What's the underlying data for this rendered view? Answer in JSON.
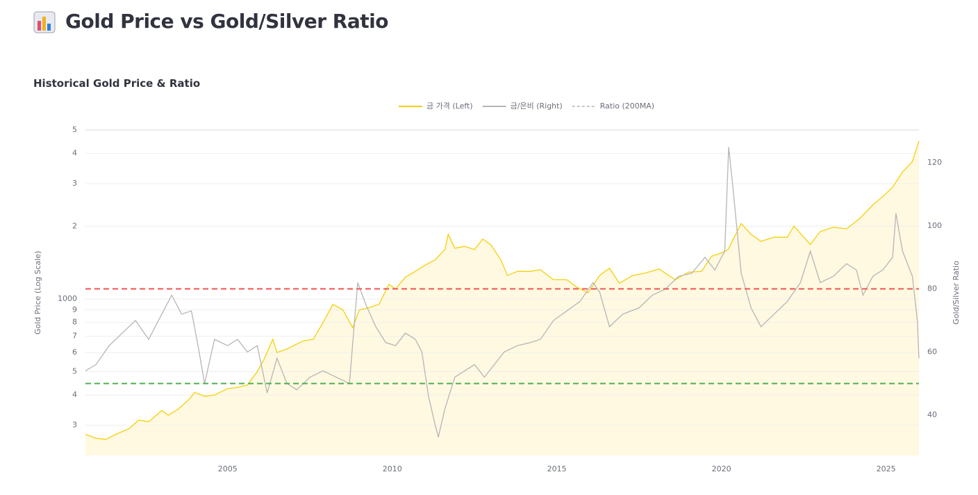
{
  "page": {
    "title": "Gold Price vs Gold/Silver Ratio"
  },
  "chart_data": {
    "type": "line",
    "title": "Historical Gold Price & Ratio",
    "y_label": "Gold Price (Log Scale)",
    "y2_label": "Gold/Silver Ratio",
    "log_y": true,
    "grid": true,
    "legend": "top",
    "xlim": [
      2000.68,
      2026.0
    ],
    "xticks": [
      2005,
      2010,
      2015,
      2020,
      2025
    ],
    "ylim": [
      225,
      5000
    ],
    "yticks": [
      {
        "value": 300,
        "label": "3"
      },
      {
        "value": 400,
        "label": "4"
      },
      {
        "value": 500,
        "label": "5"
      },
      {
        "value": 600,
        "label": "6"
      },
      {
        "value": 700,
        "label": "7"
      },
      {
        "value": 800,
        "label": "8"
      },
      {
        "value": 900,
        "label": "9"
      },
      1000,
      {
        "value": 2000,
        "label": "2"
      },
      {
        "value": 3000,
        "label": "3"
      },
      {
        "value": 4000,
        "label": "4"
      },
      {
        "value": 5000,
        "label": "5"
      }
    ],
    "y2lim": [
      27.2,
      130.4
    ],
    "y2ticks": [
      40,
      60,
      80,
      100,
      120
    ],
    "series": [
      {
        "name": "금 가격 (Left)",
        "color": "#f5cf0a",
        "fill": "#fff8dc",
        "x": [
          2000.68,
          2001,
          2001.3,
          2001.6,
          2002,
          2002.3,
          2002.6,
          2003,
          2003.2,
          2003.5,
          2003.8,
          2004,
          2004.3,
          2004.6,
          2005,
          2005.3,
          2005.6,
          2005.9,
          2006.1,
          2006.37,
          2006.5,
          2006.8,
          2007,
          2007.3,
          2007.6,
          2007.9,
          2008.2,
          2008.5,
          2008.8,
          2009,
          2009.3,
          2009.6,
          2009.9,
          2010.1,
          2010.4,
          2010.7,
          2011,
          2011.3,
          2011.6,
          2011.7,
          2011.9,
          2012.2,
          2012.5,
          2012.75,
          2013,
          2013.3,
          2013.5,
          2013.8,
          2014.2,
          2014.5,
          2014.9,
          2015.3,
          2015.6,
          2015.95,
          2016.3,
          2016.6,
          2016.9,
          2017.3,
          2017.7,
          2018.1,
          2018.6,
          2019,
          2019.4,
          2019.7,
          2020,
          2020.2,
          2020.6,
          2020.9,
          2021.2,
          2021.6,
          2022,
          2022.2,
          2022.7,
          2023,
          2023.4,
          2023.8,
          2024.2,
          2024.6,
          2024.9,
          2025.2,
          2025.5,
          2025.8,
          2026
        ],
        "values": [
          275,
          265,
          262,
          275,
          290,
          315,
          310,
          345,
          330,
          350,
          380,
          410,
          395,
          400,
          425,
          430,
          440,
          500,
          560,
          680,
          600,
          620,
          640,
          670,
          680,
          800,
          950,
          900,
          760,
          900,
          920,
          950,
          1150,
          1100,
          1230,
          1300,
          1380,
          1450,
          1600,
          1850,
          1620,
          1650,
          1600,
          1770,
          1670,
          1450,
          1250,
          1300,
          1300,
          1320,
          1200,
          1200,
          1120,
          1060,
          1250,
          1340,
          1160,
          1250,
          1280,
          1330,
          1200,
          1290,
          1300,
          1500,
          1550,
          1600,
          2050,
          1850,
          1730,
          1800,
          1800,
          2000,
          1680,
          1900,
          1980,
          1950,
          2150,
          2450,
          2650,
          2900,
          3350,
          3700,
          4500
        ]
      },
      {
        "name": "금/은비 (Right)",
        "color": "#b5b5b5",
        "axis": "y2",
        "x": [
          2000.68,
          2001,
          2001.4,
          2001.8,
          2002.2,
          2002.6,
          2003,
          2003.3,
          2003.6,
          2003.9,
          2004.1,
          2004.3,
          2004.6,
          2005,
          2005.3,
          2005.6,
          2005.9,
          2006.2,
          2006.5,
          2006.8,
          2007.1,
          2007.5,
          2007.9,
          2008.3,
          2008.7,
          2008.95,
          2009.2,
          2009.5,
          2009.8,
          2010.1,
          2010.4,
          2010.7,
          2010.9,
          2011.1,
          2011.3,
          2011.4,
          2011.6,
          2011.9,
          2012.2,
          2012.5,
          2012.8,
          2013.1,
          2013.4,
          2013.8,
          2014.2,
          2014.5,
          2014.9,
          2015.3,
          2015.7,
          2016.1,
          2016.3,
          2016.6,
          2017,
          2017.5,
          2017.9,
          2018.3,
          2018.7,
          2019.1,
          2019.5,
          2019.8,
          2020.1,
          2020.22,
          2020.35,
          2020.6,
          2020.9,
          2021.2,
          2021.6,
          2022,
          2022.4,
          2022.7,
          2023,
          2023.4,
          2023.8,
          2024.1,
          2024.3,
          2024.6,
          2024.9,
          2025.2,
          2025.3,
          2025.5,
          2025.8,
          2025.95,
          2026
        ],
        "values": [
          54,
          56,
          62,
          66,
          70,
          64,
          72,
          78,
          72,
          73,
          62,
          50,
          64,
          62,
          64,
          60,
          62,
          47,
          58,
          50,
          48,
          52,
          54,
          52,
          50,
          82,
          75,
          68,
          63,
          62,
          66,
          64,
          60,
          46,
          37,
          33,
          42,
          52,
          54,
          56,
          52,
          56,
          60,
          62,
          63,
          64,
          70,
          73,
          76,
          82,
          79,
          68,
          72,
          74,
          78,
          80,
          84,
          85,
          90,
          86,
          92,
          125,
          112,
          85,
          74,
          68,
          72,
          76,
          82,
          92,
          82,
          84,
          88,
          86,
          78,
          84,
          86,
          90,
          104,
          92,
          84,
          70,
          58
        ]
      }
    ],
    "legend_only": [
      {
        "name": "Ratio (200MA)",
        "color": "#c8c8c8"
      }
    ],
    "reference_lines": [
      {
        "value": 80,
        "axis": "y2",
        "color": "#ef5350"
      },
      {
        "value": 50,
        "axis": "y2",
        "color": "#4caf50"
      }
    ]
  }
}
